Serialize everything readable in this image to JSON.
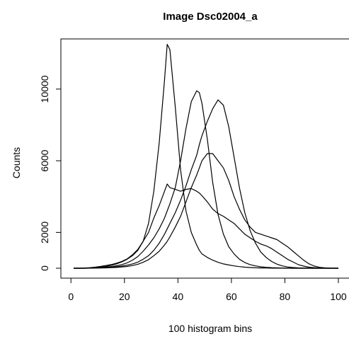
{
  "chart_data": {
    "type": "line",
    "title": "Image Dsc02004_a",
    "xlabel": "100 histogram bins",
    "ylabel": "Counts",
    "xlim": [
      1,
      100
    ],
    "ylim": [
      0,
      12800
    ],
    "xticks": [
      0,
      20,
      40,
      60,
      80,
      100
    ],
    "yticks": [
      0,
      2000,
      6000,
      10000
    ],
    "grid": false,
    "x": [
      1,
      3,
      5,
      7,
      9,
      11,
      13,
      15,
      17,
      19,
      21,
      23,
      25,
      27,
      29,
      31,
      33,
      35,
      36,
      37,
      39,
      41,
      43,
      45,
      47,
      48,
      49,
      51,
      53,
      55,
      57,
      59,
      61,
      63,
      65,
      67,
      69,
      71,
      73,
      75,
      77,
      79,
      81,
      83,
      85,
      87,
      89,
      91,
      93,
      95,
      97,
      100
    ],
    "series": [
      {
        "values": [
          0,
          0,
          5,
          15,
          30,
          60,
          100,
          160,
          240,
          350,
          500,
          700,
          1000,
          1500,
          2500,
          4300,
          7000,
          10500,
          12500,
          12200,
          9000,
          5500,
          3200,
          2000,
          1300,
          1000,
          800,
          600,
          450,
          330,
          240,
          180,
          130,
          90,
          60,
          40,
          25,
          15,
          10,
          5,
          3,
          2,
          0,
          0,
          0,
          0,
          0,
          0,
          0,
          0,
          0,
          0
        ]
      },
      {
        "values": [
          0,
          0,
          10,
          30,
          60,
          100,
          150,
          200,
          280,
          380,
          520,
          750,
          1050,
          1500,
          2000,
          2800,
          3500,
          4300,
          4700,
          4500,
          4400,
          4300,
          4400,
          4450,
          4300,
          4200,
          4050,
          3700,
          3300,
          3050,
          2900,
          2700,
          2500,
          2200,
          1900,
          1700,
          1500,
          1350,
          1250,
          1100,
          900,
          700,
          500,
          350,
          200,
          120,
          60,
          30,
          10,
          5,
          0,
          0
        ]
      },
      {
        "values": [
          0,
          0,
          0,
          10,
          25,
          40,
          60,
          90,
          140,
          200,
          300,
          450,
          650,
          950,
          1300,
          1700,
          2200,
          2800,
          3200,
          3600,
          4500,
          6000,
          7800,
          9300,
          9900,
          9800,
          9200,
          7200,
          4800,
          3000,
          1900,
          1200,
          800,
          500,
          320,
          200,
          130,
          80,
          50,
          30,
          20,
          10,
          5,
          0,
          0,
          0,
          0,
          0,
          0,
          0,
          0,
          0
        ]
      },
      {
        "values": [
          0,
          0,
          0,
          5,
          10,
          20,
          35,
          55,
          80,
          120,
          170,
          240,
          340,
          500,
          700,
          1000,
          1400,
          1900,
          2200,
          2500,
          3100,
          3800,
          4600,
          5500,
          6300,
          6900,
          7400,
          8200,
          8900,
          9400,
          9100,
          7900,
          6200,
          4500,
          3100,
          2100,
          1400,
          900,
          600,
          380,
          230,
          130,
          70,
          40,
          20,
          10,
          5,
          0,
          0,
          0,
          0,
          0
        ]
      },
      {
        "values": [
          0,
          0,
          0,
          3,
          6,
          10,
          20,
          30,
          45,
          70,
          100,
          150,
          220,
          330,
          480,
          700,
          950,
          1300,
          1500,
          1750,
          2300,
          2900,
          3700,
          4500,
          5200,
          5600,
          6000,
          6400,
          6400,
          6000,
          5600,
          4900,
          4000,
          3300,
          2700,
          2300,
          2000,
          1900,
          1800,
          1700,
          1600,
          1400,
          1200,
          950,
          700,
          450,
          250,
          120,
          50,
          20,
          5,
          0
        ]
      }
    ]
  }
}
